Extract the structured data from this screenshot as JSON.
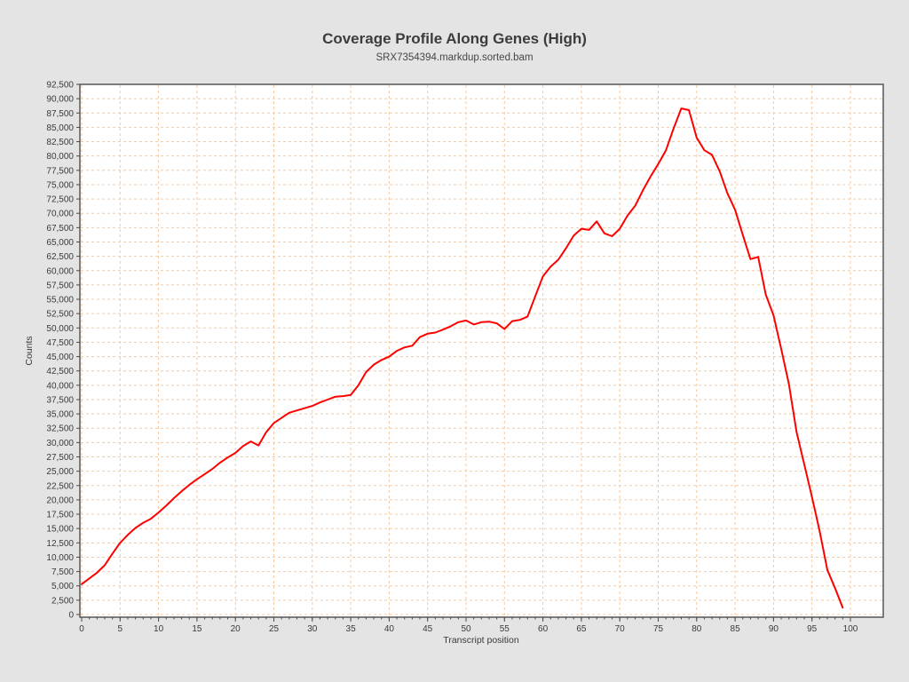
{
  "header": {
    "title": "Coverage Profile Along Genes (High)",
    "subtitle": "SRX7354394.markdup.sorted.bam"
  },
  "colors": {
    "page_background": "#e4e4e4",
    "plot_background": "#ffffff",
    "grid": "#f8c99e",
    "spine": "#565656",
    "tick": "#4a4a4a",
    "series_line": "#ff0000",
    "title_text": "#3c3c3c"
  },
  "chart_data": {
    "type": "line",
    "title": "Coverage Profile Along Genes (High)",
    "subtitle": "SRX7354394.markdup.sorted.bam",
    "xlabel": "Transcript position",
    "ylabel": "Counts",
    "xlim": [
      0,
      104.3
    ],
    "ylim": [
      0,
      92500
    ],
    "x_ticks": [
      0,
      5,
      10,
      15,
      20,
      25,
      30,
      35,
      40,
      45,
      50,
      55,
      60,
      65,
      70,
      75,
      80,
      85,
      90,
      95,
      100
    ],
    "x_minor_tick_step": 1,
    "y_ticks": [
      0,
      2500,
      5000,
      7500,
      10000,
      12500,
      15000,
      17500,
      20000,
      22500,
      25000,
      27500,
      30000,
      32500,
      35000,
      37500,
      40000,
      42500,
      45000,
      47500,
      50000,
      52500,
      55000,
      57500,
      60000,
      62500,
      65000,
      67500,
      70000,
      72500,
      75000,
      77500,
      80000,
      82500,
      85000,
      87500,
      90000,
      92500
    ],
    "grid": true,
    "grid_style": "dashed",
    "legend": "none",
    "series": [
      {
        "name": "SRX7354394.markdup.sorted.bam",
        "color": "#ff0000",
        "x": [
          0,
          1,
          2,
          3,
          4,
          5,
          6,
          7,
          8,
          9,
          10,
          11,
          12,
          13,
          14,
          15,
          16,
          17,
          18,
          19,
          20,
          21,
          22,
          23,
          24,
          25,
          26,
          27,
          28,
          29,
          30,
          31,
          32,
          33,
          34,
          35,
          36,
          37,
          38,
          39,
          40,
          41,
          42,
          43,
          44,
          45,
          46,
          47,
          48,
          49,
          50,
          51,
          52,
          53,
          54,
          55,
          56,
          57,
          58,
          59,
          60,
          61,
          62,
          63,
          64,
          65,
          66,
          67,
          68,
          69,
          70,
          71,
          72,
          73,
          74,
          75,
          76,
          77,
          78,
          79,
          80,
          81,
          82,
          83,
          84,
          85,
          86,
          87,
          88,
          89,
          90,
          91,
          92,
          93,
          94,
          95,
          96,
          97,
          98,
          99
        ],
        "y": [
          5300,
          6300,
          7300,
          8600,
          10600,
          12500,
          13900,
          15100,
          16000,
          16700,
          17800,
          19000,
          20300,
          21500,
          22600,
          23600,
          24500,
          25400,
          26500,
          27400,
          28200,
          29400,
          30200,
          29500,
          31800,
          33400,
          34300,
          35200,
          35600,
          36000,
          36400,
          37000,
          37500,
          38000,
          38100,
          38300,
          40000,
          42300,
          43600,
          44400,
          45000,
          46000,
          46600,
          46900,
          48400,
          49000,
          49200,
          49700,
          50300,
          51000,
          51300,
          50600,
          51000,
          51100,
          50800,
          49800,
          51200,
          51400,
          52000,
          55500,
          59000,
          60700,
          61900,
          63900,
          66100,
          67300,
          67100,
          68600,
          66500,
          66000,
          67300,
          69600,
          71300,
          74000,
          76400,
          78600,
          81000,
          84800,
          88300,
          88000,
          83200,
          81000,
          80200,
          77300,
          73500,
          70600,
          66200,
          62000,
          62400,
          55800,
          52200,
          46300,
          40200,
          31800,
          26200,
          20500,
          14500,
          7800,
          4600,
          1200
        ]
      }
    ]
  }
}
